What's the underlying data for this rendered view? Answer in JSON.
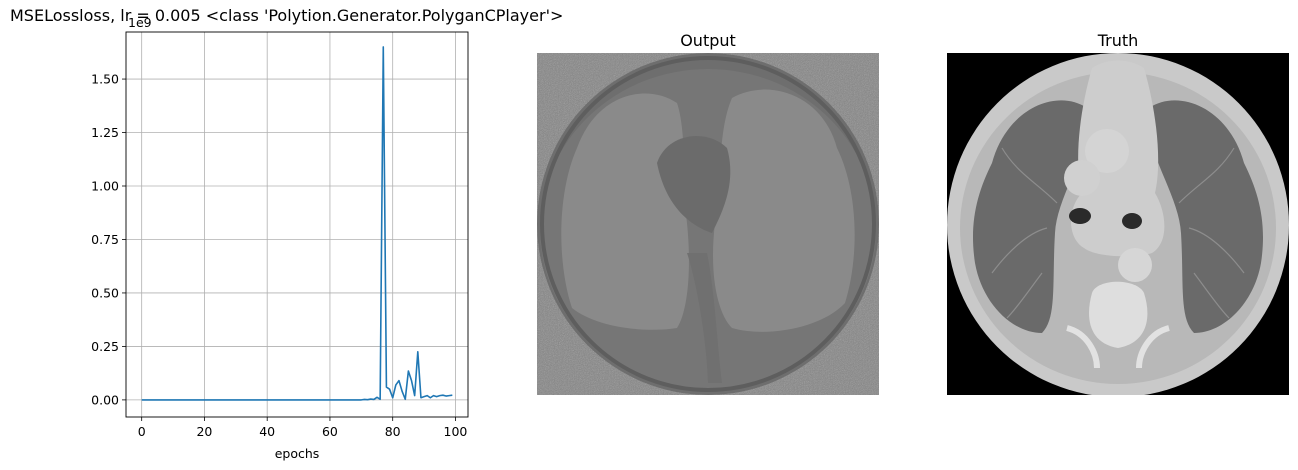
{
  "suptitle": "MSELossloss, lr = 0.005 <class 'Polytion.Generator.PolyganCPlayer'>",
  "chart_data": {
    "type": "line",
    "xlabel": "epochs",
    "ylabel": "",
    "scale_label": "1e9",
    "xlim": [
      -5,
      104
    ],
    "ylim": [
      -0.08,
      1.72
    ],
    "xticks": [
      0,
      20,
      40,
      60,
      80,
      100
    ],
    "yticks": [
      0.0,
      0.25,
      0.5,
      0.75,
      1.0,
      1.25,
      1.5
    ],
    "ytick_labels": [
      "0.00",
      "0.25",
      "0.50",
      "0.75",
      "1.00",
      "1.25",
      "1.50"
    ],
    "grid": true,
    "series": [
      {
        "color": "#1f77b4",
        "x": [
          0,
          1,
          2,
          3,
          4,
          5,
          6,
          7,
          8,
          9,
          10,
          11,
          12,
          13,
          14,
          15,
          16,
          17,
          18,
          19,
          20,
          21,
          22,
          23,
          24,
          25,
          26,
          27,
          28,
          29,
          30,
          31,
          32,
          33,
          34,
          35,
          36,
          37,
          38,
          39,
          40,
          41,
          42,
          43,
          44,
          45,
          46,
          47,
          48,
          49,
          50,
          51,
          52,
          53,
          54,
          55,
          56,
          57,
          58,
          59,
          60,
          61,
          62,
          63,
          64,
          65,
          66,
          67,
          68,
          69,
          70,
          71,
          72,
          73,
          74,
          75,
          76,
          77,
          78,
          79,
          80,
          81,
          82,
          83,
          84,
          85,
          86,
          87,
          88,
          89,
          90,
          91,
          92,
          93,
          94,
          95,
          96,
          97,
          98,
          99
        ],
        "y": [
          0,
          0,
          0,
          0,
          0,
          0,
          0,
          0,
          0,
          0,
          0,
          0,
          0,
          0,
          0,
          0,
          0,
          0,
          0,
          0,
          0,
          0,
          0,
          0,
          0,
          0,
          0,
          0,
          0,
          0,
          0,
          0,
          0,
          0,
          0,
          0,
          0,
          0,
          0,
          0,
          0,
          0,
          0,
          0,
          0,
          0,
          0,
          0,
          0,
          0,
          0,
          0,
          0,
          0,
          0,
          0,
          0,
          0,
          0,
          0,
          0,
          0,
          0,
          0,
          0,
          0,
          0,
          0,
          0,
          0,
          0,
          0.002,
          0.001,
          0.004,
          0.002,
          0.012,
          0.003,
          1.65,
          0.06,
          0.05,
          0.01,
          0.07,
          0.09,
          0.04,
          0.003,
          0.135,
          0.09,
          0.02,
          0.225,
          0.01,
          0.015,
          0.02,
          0.01,
          0.02,
          0.015,
          0.02,
          0.022,
          0.018,
          0.02,
          0.022
        ]
      }
    ]
  },
  "images": {
    "output_title": "Output",
    "truth_title": "Truth"
  }
}
